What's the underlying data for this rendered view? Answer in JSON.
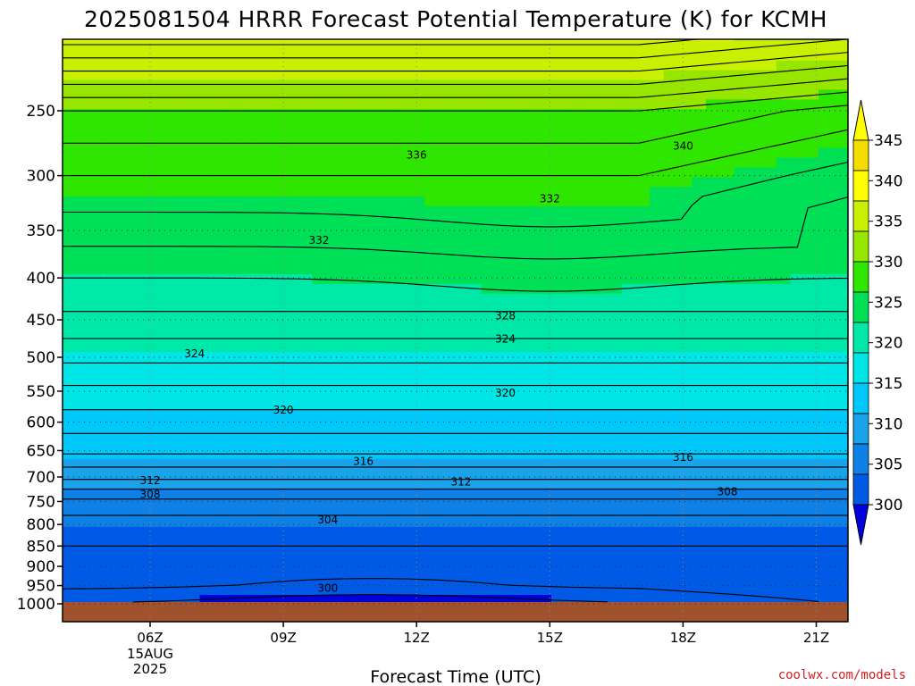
{
  "chart_data": {
    "type": "contour",
    "title": "2025081504 HRRR Forecast Potential Temperature (K) for KCMH",
    "xlabel": "Forecast Time (UTC)",
    "ylabel": "",
    "x_ticks": [
      "06Z",
      "09Z",
      "12Z",
      "15Z",
      "18Z",
      "21Z"
    ],
    "x_date_label": [
      "15AUG",
      "2025"
    ],
    "xlim_hours": [
      3,
      22
    ],
    "y_axis": "pressure (log scale, inverted)",
    "y_ticks": [
      250,
      300,
      350,
      400,
      450,
      500,
      550,
      600,
      650,
      700,
      750,
      800,
      850,
      900,
      950,
      1000
    ],
    "ylim": [
      200,
      1030
    ],
    "surface_pressure": 995,
    "grid": "dotted",
    "contour_interval": 2,
    "contour_labels": [
      {
        "value": 336,
        "x": 12.0,
        "p": 283
      },
      {
        "value": 340,
        "x": 18.0,
        "p": 276
      },
      {
        "value": 332,
        "x": 9.8,
        "p": 360
      },
      {
        "value": 332,
        "x": 15.0,
        "p": 320
      },
      {
        "value": 328,
        "x": 14.0,
        "p": 445
      },
      {
        "value": 324,
        "x": 7.0,
        "p": 495
      },
      {
        "value": 324,
        "x": 14.0,
        "p": 475
      },
      {
        "value": 320,
        "x": 9.0,
        "p": 580
      },
      {
        "value": 320,
        "x": 14.0,
        "p": 553
      },
      {
        "value": 316,
        "x": 10.8,
        "p": 670
      },
      {
        "value": 316,
        "x": 18.0,
        "p": 662
      },
      {
        "value": 312,
        "x": 6.0,
        "p": 707
      },
      {
        "value": 312,
        "x": 13.0,
        "p": 710
      },
      {
        "value": 308,
        "x": 6.0,
        "p": 735
      },
      {
        "value": 308,
        "x": 19.0,
        "p": 730
      },
      {
        "value": 304,
        "x": 10.0,
        "p": 790
      },
      {
        "value": 300,
        "x": 10.0,
        "p": 957
      }
    ],
    "colorbar": {
      "labels": [
        300,
        305,
        310,
        315,
        320,
        325,
        330,
        335,
        340,
        345
      ],
      "colors": [
        "#0014ff",
        "#005ae6",
        "#0e80e6",
        "#1aa3eb",
        "#00c8fa",
        "#00e6e6",
        "#00e8a8",
        "#00e057",
        "#2ee600",
        "#96e600",
        "#c8f000",
        "#ffff00",
        "#f5dc00"
      ],
      "under_color": "#0000dc",
      "over_color": "#ffff00"
    }
  },
  "credit": "coolwx.com/models"
}
